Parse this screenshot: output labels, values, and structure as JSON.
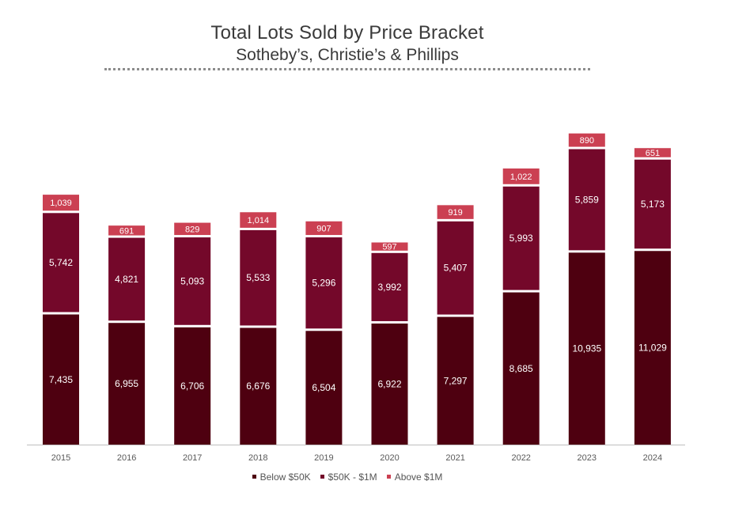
{
  "header": {
    "title": "Total Lots Sold by Price Bracket",
    "subtitle": "Sotheby’s, Christie’s & Phillips"
  },
  "chart_data": {
    "type": "bar",
    "stacked": true,
    "categories": [
      "2015",
      "2016",
      "2017",
      "2018",
      "2019",
      "2020",
      "2021",
      "2022",
      "2023",
      "2024"
    ],
    "series": [
      {
        "name": "Below $50K",
        "color": "#4e0010",
        "values": [
          7435,
          6955,
          6706,
          6676,
          6504,
          6922,
          7297,
          8685,
          10935,
          11029
        ],
        "labels": [
          "7,435",
          "6,955",
          "6,706",
          "6,676",
          "6,504",
          "6,922",
          "7,297",
          "8,685",
          "10,935",
          "11,029"
        ]
      },
      {
        "name": "$50K - $1M",
        "color": "#74082a",
        "values": [
          5742,
          4821,
          5093,
          5533,
          5296,
          3992,
          5407,
          5993,
          5859,
          5173
        ],
        "labels": [
          "5,742",
          "4,821",
          "5,093",
          "5,533",
          "5,296",
          "3,992",
          "5,407",
          "5,993",
          "5,859",
          "5,173"
        ]
      },
      {
        "name": "Above $1M",
        "color": "#cb4052",
        "values": [
          1039,
          691,
          829,
          1014,
          907,
          597,
          919,
          1022,
          890,
          651
        ],
        "labels": [
          "1,039",
          "691",
          "829",
          "1,014",
          "907",
          "597",
          "919",
          "1,022",
          "890",
          "651"
        ]
      }
    ],
    "ylim": [
      0,
      18000
    ],
    "grid": false,
    "legend_position": "bottom",
    "baseline_color": "#bfbfbf",
    "segment_gap_color": "#ffffff",
    "label_color": "#ffffff",
    "tick_label_color": "#595959"
  }
}
